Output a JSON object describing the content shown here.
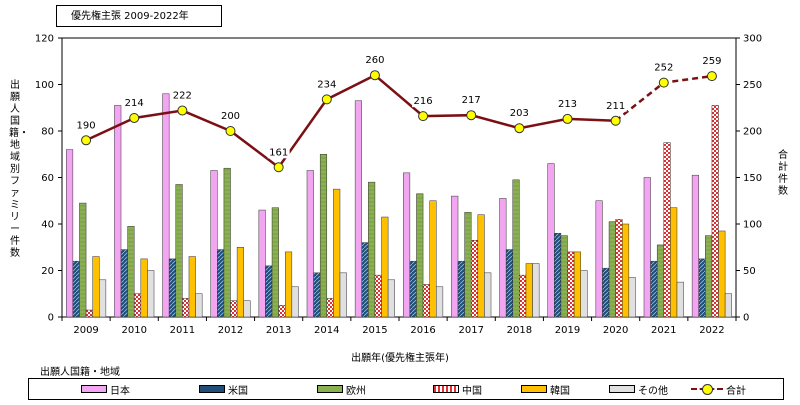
{
  "header": {
    "title": "優先権主張 2009-2022年"
  },
  "chart_data": {
    "type": "bar",
    "categories": [
      "2009",
      "2010",
      "2011",
      "2012",
      "2013",
      "2014",
      "2015",
      "2016",
      "2017",
      "2018",
      "2019",
      "2020",
      "2021",
      "2022"
    ],
    "series": [
      {
        "name": "日本",
        "color": "#f2a6f2",
        "values": [
          72,
          91,
          96,
          63,
          46,
          63,
          93,
          62,
          52,
          51,
          66,
          50,
          60,
          61
        ]
      },
      {
        "name": "米国",
        "color": "#1f4e79",
        "values": [
          24,
          29,
          25,
          29,
          22,
          19,
          32,
          24,
          24,
          29,
          36,
          21,
          24,
          25
        ]
      },
      {
        "name": "欧州",
        "color": "#8ab052",
        "values": [
          49,
          39,
          57,
          64,
          47,
          70,
          58,
          53,
          45,
          59,
          35,
          41,
          31,
          35
        ]
      },
      {
        "name": "中国",
        "color": "#e05050",
        "values": [
          3,
          10,
          8,
          7,
          5,
          8,
          18,
          14,
          33,
          18,
          28,
          42,
          75,
          91
        ]
      },
      {
        "name": "韓国",
        "color": "#ffc000",
        "values": [
          26,
          25,
          26,
          30,
          28,
          55,
          43,
          50,
          44,
          23,
          28,
          40,
          47,
          37
        ]
      },
      {
        "name": "その他",
        "color": "#e0e0e0",
        "values": [
          16,
          20,
          10,
          7,
          13,
          19,
          16,
          13,
          19,
          23,
          20,
          17,
          15,
          10
        ]
      }
    ],
    "total": {
      "name": "合計",
      "values": [
        190,
        214,
        222,
        200,
        161,
        234,
        260,
        216,
        217,
        203,
        213,
        211,
        252,
        259
      ]
    },
    "xlabel": "出願年(優先権主張年)",
    "ylabel": "出願人国籍・地域別ファミリー件数",
    "y2label": "合計件数",
    "ylim": [
      0,
      120
    ],
    "y2lim": [
      0,
      300
    ],
    "yticks": [
      "0",
      "20",
      "40",
      "60",
      "80",
      "100",
      "120"
    ],
    "y2ticks": [
      "0",
      "50",
      "100",
      "150",
      "200",
      "250",
      "300"
    ],
    "grid": false,
    "legend_placement": "bottom",
    "legend_caption": "出願人国籍・地域"
  }
}
